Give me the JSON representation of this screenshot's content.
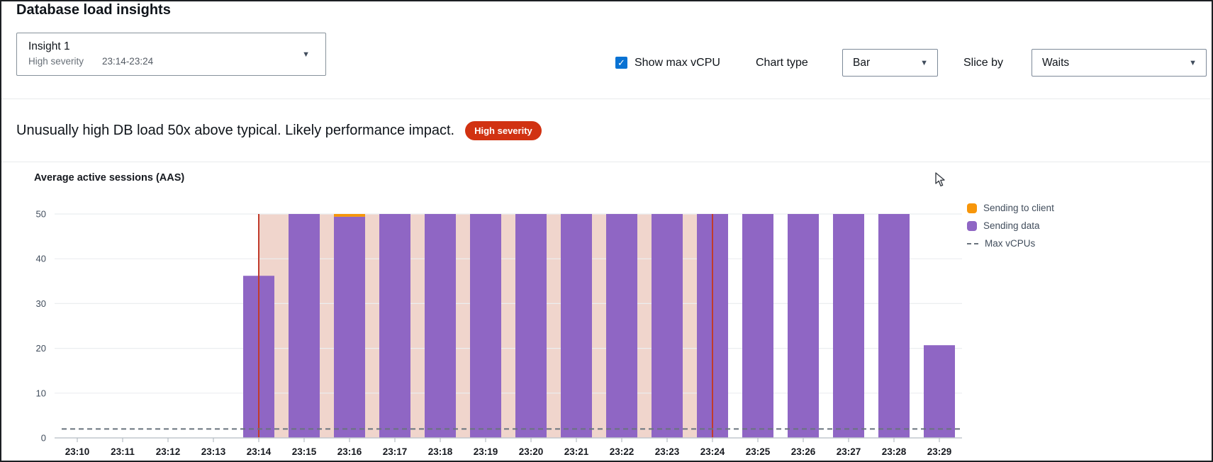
{
  "page": {
    "title": "Database load insights"
  },
  "header": {
    "insight_selector": {
      "label": "Insight 1",
      "severity": "High severity",
      "time_range": "23:14-23:24"
    },
    "show_max_vcpu": {
      "label": "Show max vCPU",
      "checked": true,
      "check_glyph": "✓"
    },
    "chart_type": {
      "label": "Chart type",
      "value": "Bar"
    },
    "slice_by": {
      "label": "Slice by",
      "value": "Waits"
    }
  },
  "alert": {
    "message": "Unusually high DB load 50x above typical. Likely performance impact.",
    "severity_badge": "High severity",
    "badge_color": "#d13212"
  },
  "chart_data": {
    "type": "bar",
    "title": "Average active sessions (AAS)",
    "x": [
      "23:10",
      "23:11",
      "23:12",
      "23:13",
      "23:14",
      "23:15",
      "23:16",
      "23:17",
      "23:18",
      "23:19",
      "23:20",
      "23:21",
      "23:22",
      "23:23",
      "23:24",
      "23:25",
      "23:26",
      "23:27",
      "23:28",
      "23:29"
    ],
    "series": [
      {
        "name": "Sending to client",
        "color": "#f7960a",
        "values": [
          0,
          0,
          0,
          0,
          0,
          0,
          0.6,
          0,
          0,
          0,
          0,
          0,
          0,
          0,
          0,
          0,
          0,
          0,
          0,
          0
        ]
      },
      {
        "name": "Sending data",
        "color": "#8f66c4",
        "values": [
          0,
          0,
          0,
          0,
          36.2,
          50,
          49.4,
          50,
          50,
          50,
          50,
          50,
          50,
          50,
          50,
          50,
          50,
          50,
          50,
          20.7
        ]
      }
    ],
    "max_vcpus": {
      "label": "Max vCPUs",
      "value": 2,
      "line_color": "#69737d"
    },
    "ylim": [
      0,
      50
    ],
    "yticks": [
      0,
      10,
      20,
      30,
      40,
      50
    ],
    "ylabel": "Average active sessions (AAS)",
    "grid": true,
    "legend_position": "right",
    "highlight_region": {
      "start": "23:14",
      "end": "23:24",
      "fill": "#f0d5cc",
      "line_color": "#c13b2b"
    },
    "legend": [
      {
        "label": "Sending to client",
        "color": "#f7960a",
        "type": "swatch"
      },
      {
        "label": "Sending data",
        "color": "#8f66c4",
        "type": "swatch"
      },
      {
        "label": "Max vCPUs",
        "color": "#69737d",
        "type": "dash"
      }
    ],
    "colors": {
      "grid": "#ebeef0",
      "axis": "#c1c7cd",
      "tick": "#a9b2ba",
      "tick_label": "#16191f"
    }
  }
}
